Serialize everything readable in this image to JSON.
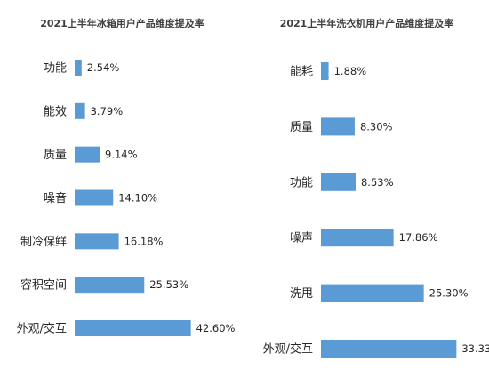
{
  "chart_data": [
    {
      "type": "bar",
      "orientation": "horizontal",
      "title": "2021上半年冰箱用户产品维度提及率",
      "categories": [
        "功能",
        "能效",
        "质量",
        "噪音",
        "制冷保鲜",
        "容积空间",
        "外观/交互"
      ],
      "values": [
        2.54,
        3.79,
        9.14,
        14.1,
        16.18,
        25.53,
        42.6
      ],
      "value_labels": [
        "2.54%",
        "3.79%",
        "9.14%",
        "14.10%",
        "16.18%",
        "25.53%",
        "42.60%"
      ],
      "xlim": [
        0,
        45
      ],
      "grid": false,
      "bar_color": "#5B9BD5"
    },
    {
      "type": "bar",
      "orientation": "horizontal",
      "title": "2021上半年洗衣机用户产品维度提及率",
      "categories": [
        "能耗",
        "质量",
        "功能",
        "噪声",
        "洗甩",
        "外观/交互"
      ],
      "values": [
        1.88,
        8.3,
        8.53,
        17.86,
        25.3,
        33.33
      ],
      "value_labels": [
        "1.88%",
        "8.30%",
        "8.53%",
        "17.86%",
        "25.30%",
        "33.33%"
      ],
      "xlim": [
        0,
        35
      ],
      "grid": false,
      "bar_color": "#5B9BD5"
    }
  ]
}
